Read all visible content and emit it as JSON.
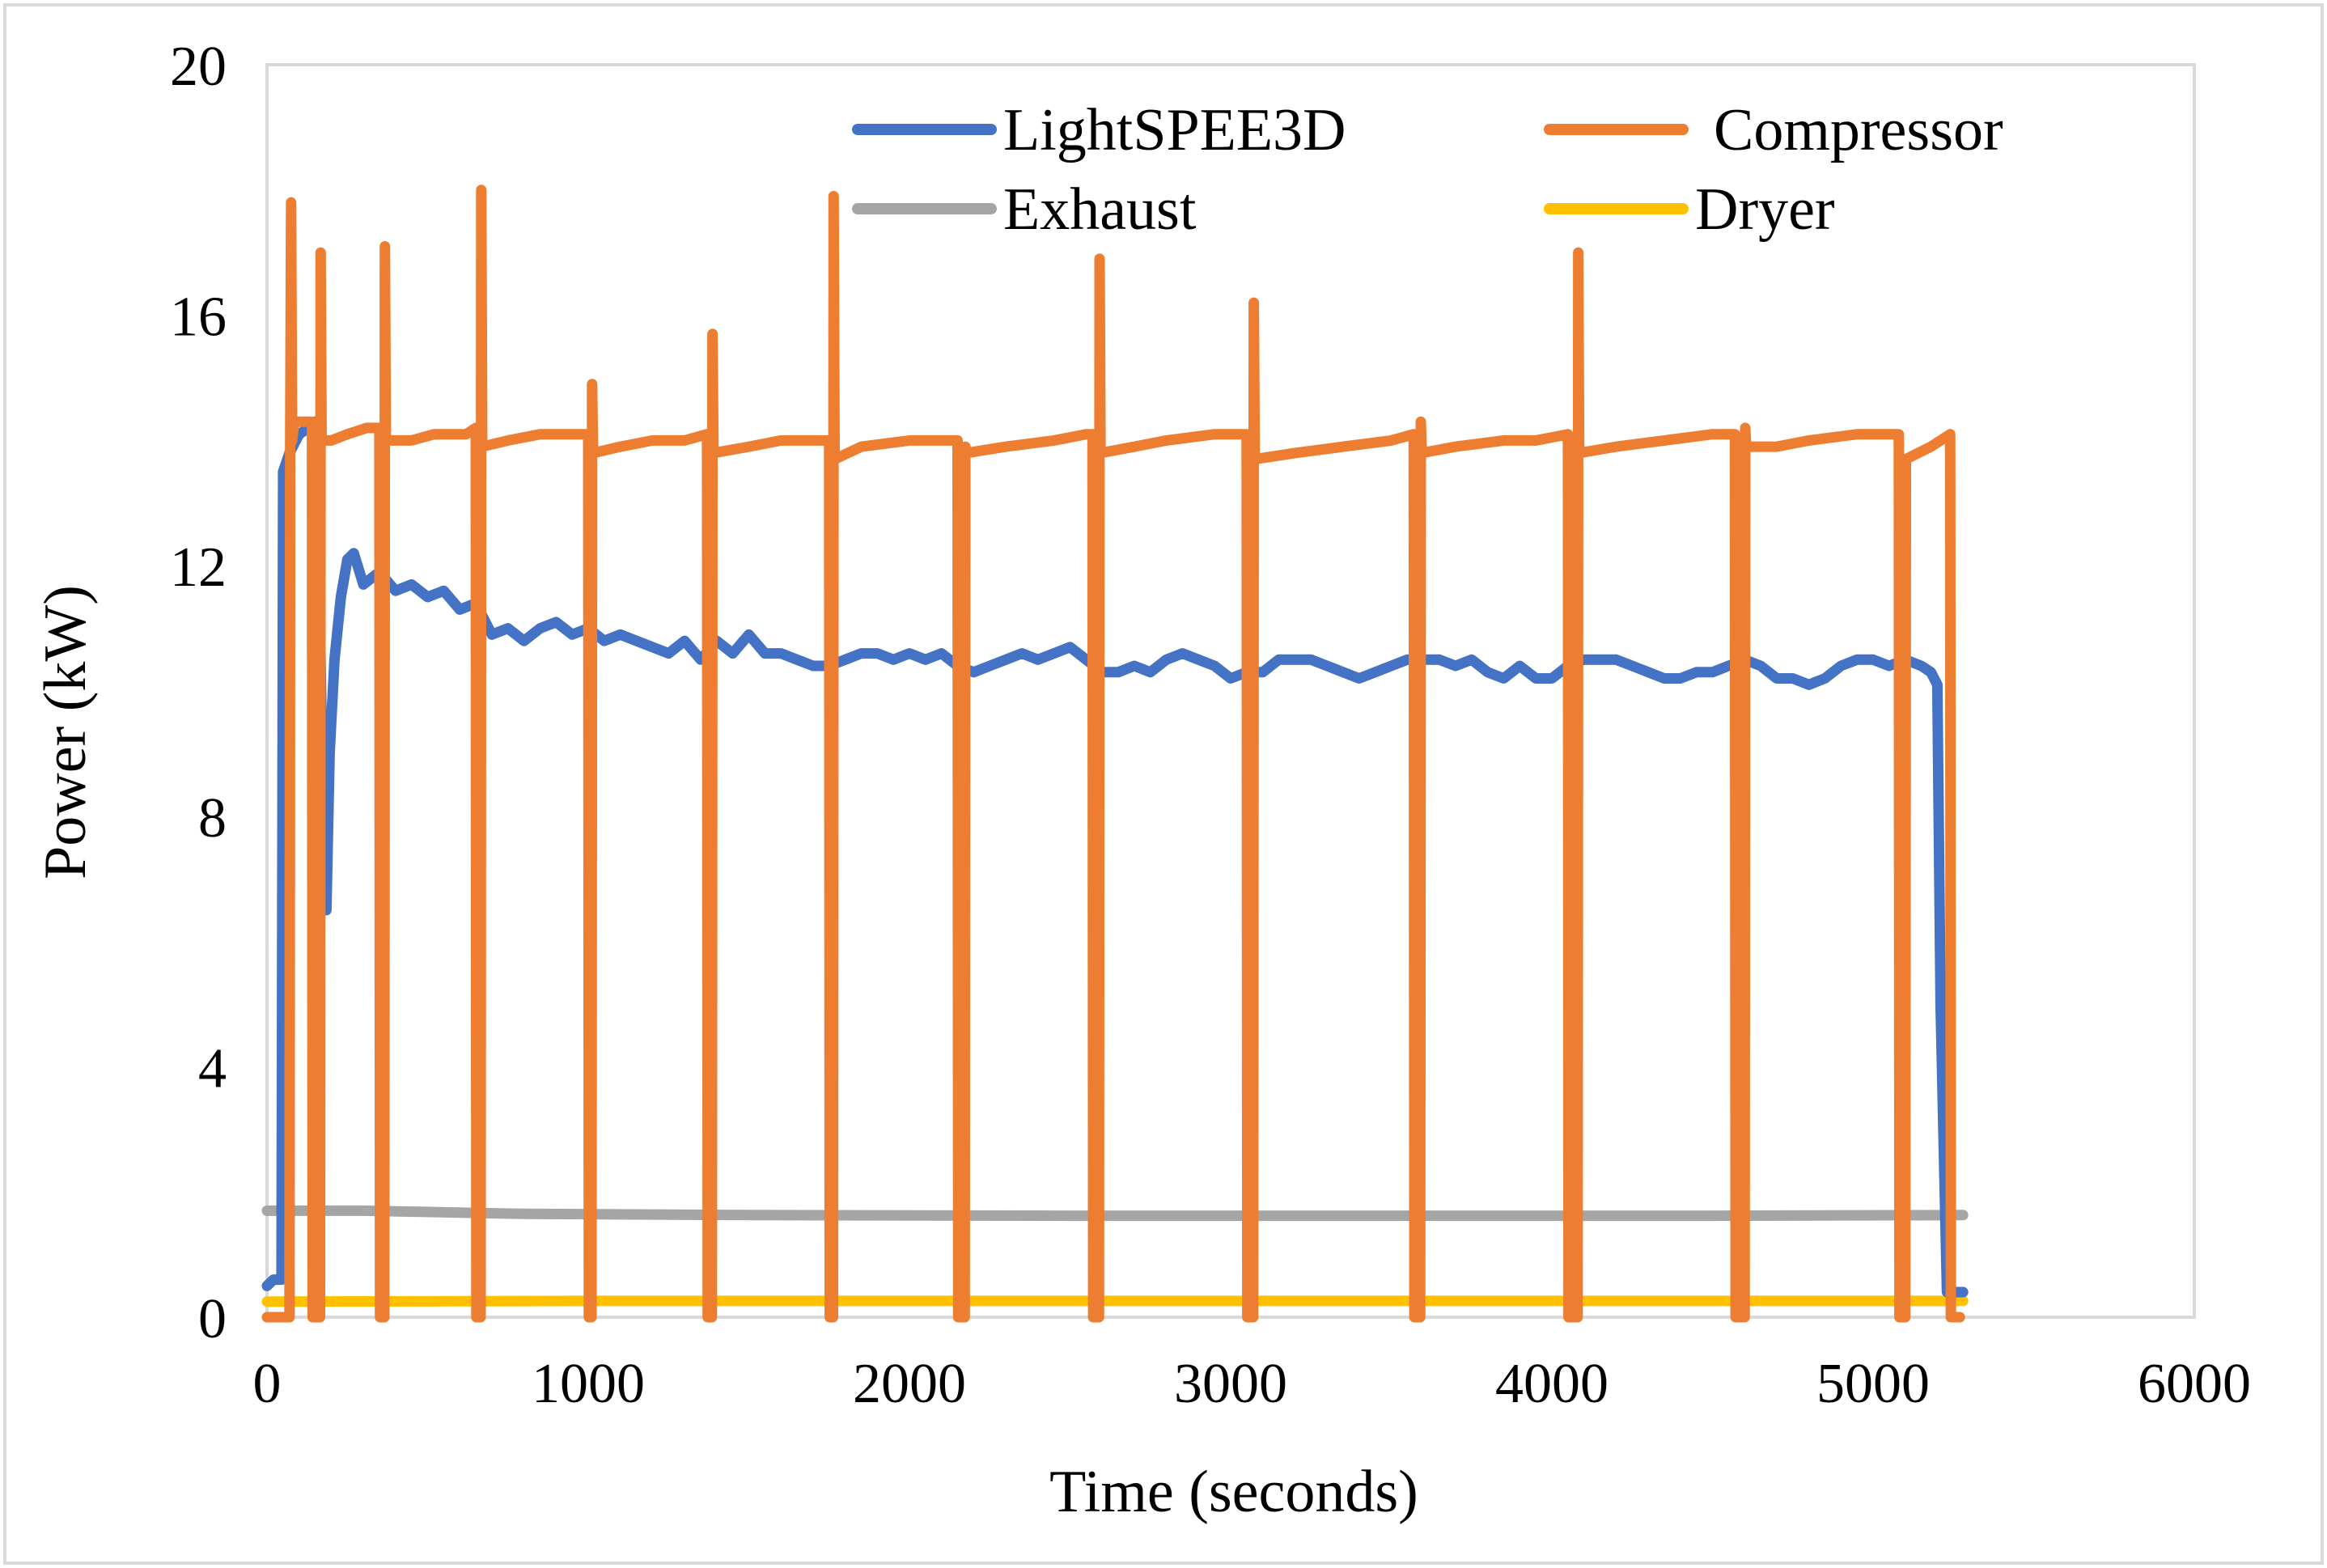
{
  "chart_data": {
    "type": "line",
    "title": "",
    "xlabel": "Time (seconds)",
    "ylabel": "Power (kW)",
    "xlim": [
      0,
      6000
    ],
    "ylim": [
      0,
      20
    ],
    "xticks": [
      "0",
      "1000",
      "2000",
      "3000",
      "4000",
      "5000",
      "6000"
    ],
    "yticks": [
      "0",
      "4",
      "8",
      "12",
      "16",
      "20"
    ],
    "xtick_values": [
      0,
      1000,
      2000,
      3000,
      4000,
      5000,
      6000
    ],
    "ytick_values": [
      0,
      4,
      8,
      12,
      16,
      20
    ],
    "grid": false,
    "legend_position": "top-right",
    "series": [
      {
        "name": "LightSPEE3D",
        "color": "#4472C4",
        "points": [
          [
            0,
            0.5
          ],
          [
            20,
            0.6
          ],
          [
            45,
            0.6
          ],
          [
            50,
            13.5
          ],
          [
            70,
            13.8
          ],
          [
            100,
            14.1
          ],
          [
            130,
            14.2
          ],
          [
            150,
            14.3
          ],
          [
            160,
            12.5
          ],
          [
            175,
            8
          ],
          [
            185,
            6.5
          ],
          [
            195,
            9
          ],
          [
            210,
            10.5
          ],
          [
            230,
            11.5
          ],
          [
            250,
            12.1
          ],
          [
            270,
            12.2
          ],
          [
            300,
            11.7
          ],
          [
            350,
            11.9
          ],
          [
            400,
            11.6
          ],
          [
            450,
            11.7
          ],
          [
            500,
            11.5
          ],
          [
            550,
            11.6
          ],
          [
            600,
            11.3
          ],
          [
            650,
            11.4
          ],
          [
            700,
            10.9
          ],
          [
            750,
            11
          ],
          [
            800,
            10.8
          ],
          [
            850,
            11
          ],
          [
            900,
            11.1
          ],
          [
            950,
            10.9
          ],
          [
            1000,
            11
          ],
          [
            1050,
            10.8
          ],
          [
            1100,
            10.9
          ],
          [
            1150,
            10.8
          ],
          [
            1200,
            10.7
          ],
          [
            1250,
            10.6
          ],
          [
            1300,
            10.8
          ],
          [
            1350,
            10.5
          ],
          [
            1400,
            10.8
          ],
          [
            1450,
            10.6
          ],
          [
            1500,
            10.9
          ],
          [
            1550,
            10.6
          ],
          [
            1600,
            10.6
          ],
          [
            1650,
            10.5
          ],
          [
            1700,
            10.4
          ],
          [
            1750,
            10.4
          ],
          [
            1800,
            10.5
          ],
          [
            1850,
            10.6
          ],
          [
            1900,
            10.6
          ],
          [
            1950,
            10.5
          ],
          [
            2000,
            10.6
          ],
          [
            2050,
            10.5
          ],
          [
            2100,
            10.6
          ],
          [
            2150,
            10.4
          ],
          [
            2200,
            10.3
          ],
          [
            2250,
            10.4
          ],
          [
            2300,
            10.5
          ],
          [
            2350,
            10.6
          ],
          [
            2400,
            10.5
          ],
          [
            2450,
            10.6
          ],
          [
            2500,
            10.7
          ],
          [
            2550,
            10.5
          ],
          [
            2600,
            10.3
          ],
          [
            2650,
            10.3
          ],
          [
            2700,
            10.4
          ],
          [
            2750,
            10.3
          ],
          [
            2800,
            10.5
          ],
          [
            2850,
            10.6
          ],
          [
            2900,
            10.5
          ],
          [
            2950,
            10.4
          ],
          [
            3000,
            10.2
          ],
          [
            3050,
            10.3
          ],
          [
            3100,
            10.3
          ],
          [
            3150,
            10.5
          ],
          [
            3200,
            10.5
          ],
          [
            3250,
            10.5
          ],
          [
            3300,
            10.4
          ],
          [
            3350,
            10.3
          ],
          [
            3400,
            10.2
          ],
          [
            3450,
            10.3
          ],
          [
            3500,
            10.4
          ],
          [
            3550,
            10.5
          ],
          [
            3600,
            10.5
          ],
          [
            3650,
            10.5
          ],
          [
            3700,
            10.4
          ],
          [
            3750,
            10.5
          ],
          [
            3800,
            10.3
          ],
          [
            3850,
            10.2
          ],
          [
            3900,
            10.4
          ],
          [
            3950,
            10.2
          ],
          [
            4000,
            10.2
          ],
          [
            4050,
            10.4
          ],
          [
            4100,
            10.5
          ],
          [
            4150,
            10.5
          ],
          [
            4200,
            10.5
          ],
          [
            4250,
            10.4
          ],
          [
            4300,
            10.3
          ],
          [
            4350,
            10.2
          ],
          [
            4400,
            10.2
          ],
          [
            4450,
            10.3
          ],
          [
            4500,
            10.3
          ],
          [
            4550,
            10.4
          ],
          [
            4600,
            10.5
          ],
          [
            4650,
            10.4
          ],
          [
            4700,
            10.2
          ],
          [
            4750,
            10.2
          ],
          [
            4800,
            10.1
          ],
          [
            4850,
            10.2
          ],
          [
            4900,
            10.4
          ],
          [
            4950,
            10.5
          ],
          [
            5000,
            10.5
          ],
          [
            5050,
            10.4
          ],
          [
            5100,
            10.5
          ],
          [
            5150,
            10.4
          ],
          [
            5180,
            10.3
          ],
          [
            5200,
            10.1
          ],
          [
            5210,
            5
          ],
          [
            5230,
            0.4
          ],
          [
            5280,
            0.4
          ]
        ]
      },
      {
        "name": "Compressor",
        "color": "#ED7D31",
        "points": [
          [
            0,
            0
          ],
          [
            70,
            0
          ],
          [
            72,
            13.8
          ],
          [
            75,
            17.8
          ],
          [
            78,
            14
          ],
          [
            85,
            14.3
          ],
          [
            110,
            14.3
          ],
          [
            140,
            14.3
          ],
          [
            142,
            0
          ],
          [
            165,
            0
          ],
          [
            167,
            17
          ],
          [
            170,
            14
          ],
          [
            200,
            14
          ],
          [
            250,
            14.1
          ],
          [
            310,
            14.2
          ],
          [
            350,
            14.2
          ],
          [
            352,
            0
          ],
          [
            365,
            0
          ],
          [
            367,
            17.1
          ],
          [
            370,
            14
          ],
          [
            450,
            14
          ],
          [
            520,
            14.1
          ],
          [
            620,
            14.1
          ],
          [
            650,
            14.2
          ],
          [
            652,
            0
          ],
          [
            665,
            0
          ],
          [
            667,
            18
          ],
          [
            670,
            13.9
          ],
          [
            750,
            14
          ],
          [
            850,
            14.1
          ],
          [
            990,
            14.1
          ],
          [
            1000,
            14.1
          ],
          [
            1002,
            0
          ],
          [
            1010,
            0
          ],
          [
            1012,
            14.9
          ],
          [
            1015,
            13.8
          ],
          [
            1100,
            13.9
          ],
          [
            1200,
            14
          ],
          [
            1300,
            14
          ],
          [
            1370,
            14.1
          ],
          [
            1372,
            0
          ],
          [
            1385,
            0
          ],
          [
            1387,
            15.7
          ],
          [
            1390,
            13.8
          ],
          [
            1500,
            13.9
          ],
          [
            1600,
            14
          ],
          [
            1750,
            14
          ],
          [
            1752,
            0
          ],
          [
            1762,
            0
          ],
          [
            1764,
            17.9
          ],
          [
            1767,
            13.7
          ],
          [
            1850,
            13.9
          ],
          [
            2000,
            14
          ],
          [
            2150,
            14
          ],
          [
            2152,
            0
          ],
          [
            2172,
            0
          ],
          [
            2174,
            13.9
          ],
          [
            2177,
            13.8
          ],
          [
            2300,
            13.9
          ],
          [
            2450,
            14
          ],
          [
            2550,
            14.1
          ],
          [
            2570,
            14.1
          ],
          [
            2572,
            0
          ],
          [
            2590,
            0
          ],
          [
            2592,
            16.9
          ],
          [
            2595,
            13.8
          ],
          [
            2700,
            13.9
          ],
          [
            2800,
            14
          ],
          [
            2950,
            14.1
          ],
          [
            3050,
            14.1
          ],
          [
            3052,
            0
          ],
          [
            3070,
            0
          ],
          [
            3072,
            16.2
          ],
          [
            3075,
            13.7
          ],
          [
            3200,
            13.8
          ],
          [
            3350,
            13.9
          ],
          [
            3500,
            14
          ],
          [
            3570,
            14.1
          ],
          [
            3572,
            0
          ],
          [
            3590,
            0
          ],
          [
            3592,
            14.3
          ],
          [
            3595,
            13.8
          ],
          [
            3700,
            13.9
          ],
          [
            3850,
            14
          ],
          [
            3950,
            14
          ],
          [
            4050,
            14.1
          ],
          [
            4052,
            0
          ],
          [
            4080,
            0
          ],
          [
            4082,
            17
          ],
          [
            4085,
            13.8
          ],
          [
            4200,
            13.9
          ],
          [
            4350,
            14
          ],
          [
            4500,
            14.1
          ],
          [
            4570,
            14.1
          ],
          [
            4572,
            0
          ],
          [
            4600,
            0
          ],
          [
            4602,
            14.2
          ],
          [
            4605,
            13.9
          ],
          [
            4700,
            13.9
          ],
          [
            4800,
            14
          ],
          [
            4950,
            14.1
          ],
          [
            5080,
            14.1
          ],
          [
            5082,
            0
          ],
          [
            5100,
            0
          ],
          [
            5102,
            13.7
          ],
          [
            5180,
            13.9
          ],
          [
            5240,
            14.1
          ],
          [
            5242,
            0
          ],
          [
            5270,
            0
          ]
        ]
      },
      {
        "name": "Exhaust",
        "color": "#A5A5A5",
        "points": [
          [
            0,
            1.7
          ],
          [
            300,
            1.7
          ],
          [
            800,
            1.65
          ],
          [
            1500,
            1.63
          ],
          [
            2500,
            1.62
          ],
          [
            3500,
            1.62
          ],
          [
            4500,
            1.62
          ],
          [
            5280,
            1.63
          ]
        ]
      },
      {
        "name": "Dryer",
        "color": "#FFC000",
        "points": [
          [
            0,
            0.25
          ],
          [
            1000,
            0.26
          ],
          [
            2000,
            0.26
          ],
          [
            3000,
            0.26
          ],
          [
            4000,
            0.26
          ],
          [
            5000,
            0.26
          ],
          [
            5280,
            0.26
          ]
        ]
      }
    ]
  }
}
